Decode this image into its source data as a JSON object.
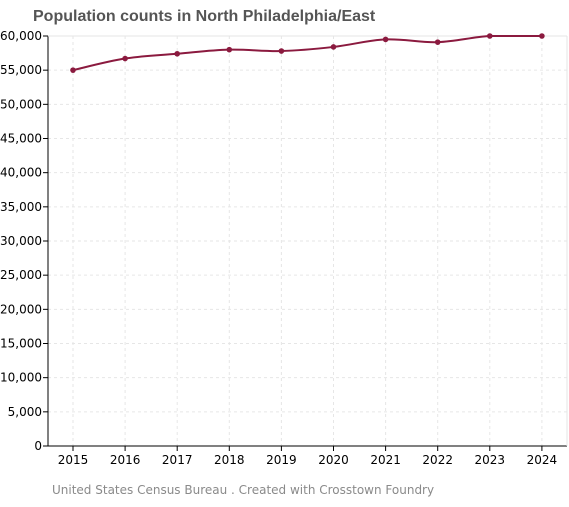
{
  "chart_data": {
    "type": "line",
    "title": "Population counts in North Philadelphia/East",
    "x": [
      "2015",
      "2016",
      "2017",
      "2018",
      "2019",
      "2020",
      "2021",
      "2022",
      "2023",
      "2024"
    ],
    "series": [
      {
        "values": [
          55000,
          56700,
          57400,
          58000,
          57800,
          58400,
          59500,
          59100,
          60000,
          60000
        ]
      }
    ],
    "xlabel": "",
    "ylabel": "",
    "ylim": [
      0,
      60000
    ],
    "yticks": [
      "0",
      "5,000",
      "10,000",
      "15,000",
      "20,000",
      "25,000",
      "30,000",
      "35,000",
      "40,000",
      "45,000",
      "50,000",
      "55,000",
      "60,000"
    ],
    "grid": true,
    "legend": "none"
  },
  "colors": {
    "line": "#8b1a3f",
    "grid": "#e6e6e6",
    "axis": "#000000"
  },
  "footer": "United States Census Bureau . Created with Crosstown Foundry"
}
